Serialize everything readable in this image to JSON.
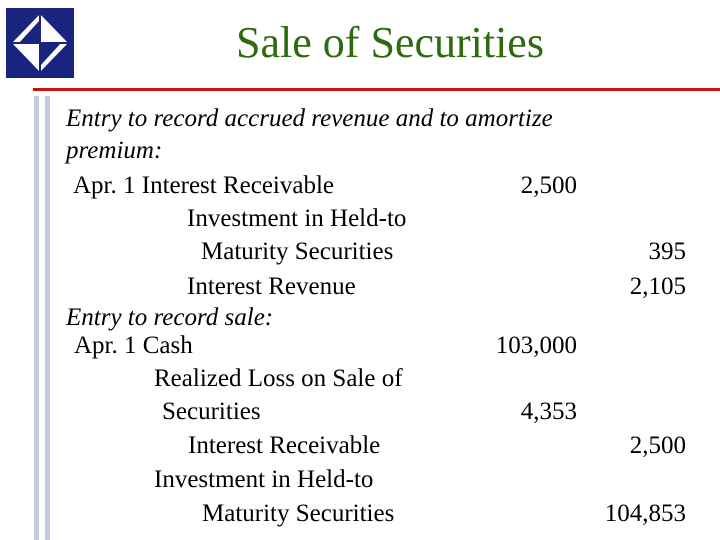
{
  "slide": {
    "title": "Sale of Securities"
  },
  "logo": {
    "icon": "diamond-book-logo-icon",
    "color": "#1a237e"
  },
  "colors": {
    "title": "#2e6b0f",
    "rule": "#cc1111",
    "side_bars": "#c5c9dd"
  },
  "entry1": {
    "caption_line1": "Entry to record accrued revenue and to amortize",
    "caption_line2": "premium:",
    "date_account": "Apr. 1 Interest Receivable",
    "debit": "2,500",
    "line2": "Investment in Held-to",
    "line3": "Maturity Securities",
    "credit1": "395",
    "line4": "Interest Revenue",
    "credit2": "2,105"
  },
  "entry2": {
    "caption": "Entry to record sale:",
    "date_account": "Apr. 1 Cash",
    "debit1": "103,000",
    "line2": "Realized Loss on Sale of",
    "line3": "Securities",
    "debit2": "4,353",
    "line4": "Interest Receivable",
    "credit1": "2,500",
    "line5": "Investment in Held-to",
    "line6": "Maturity Securities",
    "credit2": "104,853"
  }
}
